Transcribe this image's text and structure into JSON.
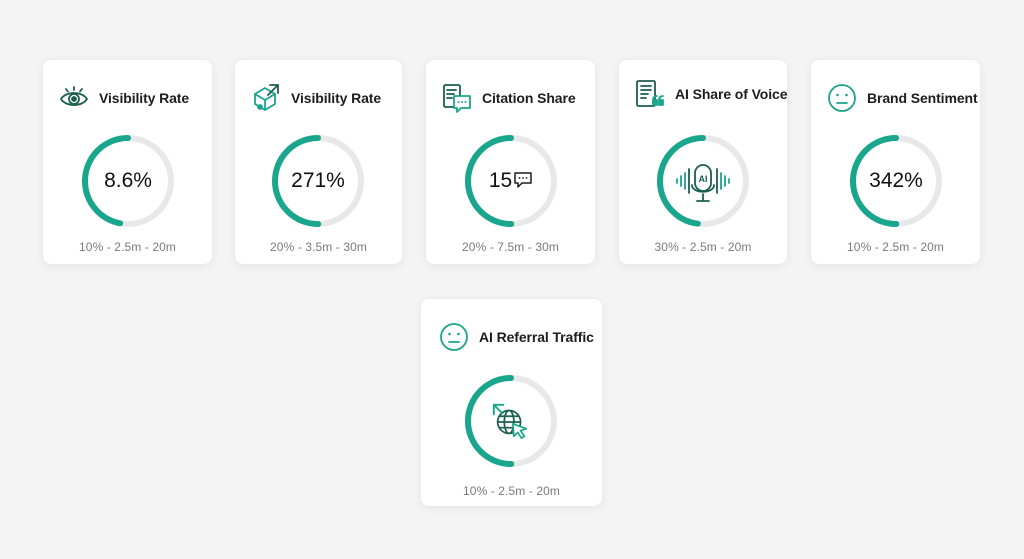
{
  "colors": {
    "accent": "#1aa68c",
    "track": "#e8e8e8",
    "background": "#f4f4f5",
    "card": "#ffffff"
  },
  "cards": [
    {
      "title": "Visibility Rate",
      "icon": "eye-icon",
      "value": "8.6%",
      "progress": 0.47,
      "footer": "10% - 2.5m - 20m"
    },
    {
      "title": "Visibility Rate",
      "icon": "cube-arrow-icon",
      "value": "271%",
      "progress": 0.5,
      "footer": "20% - 3.5m - 30m"
    },
    {
      "title": "Citation Share",
      "icon": "chat-document-icon",
      "value": "15",
      "progress": 0.5,
      "footer": "20% - 7.5m - 30m"
    },
    {
      "title": "AI Share of Voice",
      "icon": "quote-document-icon",
      "center_icon": "ai-microphone-icon",
      "center_icon_text": "AI",
      "progress": 0.48,
      "footer": "30% - 2.5m - 20m"
    },
    {
      "title": "Brand Sentiment",
      "icon": "neutral-face-icon",
      "value": "342%",
      "progress": 0.5,
      "footer": "10% - 2.5m - 20m"
    },
    {
      "title": "AI Referral Traffic",
      "icon": "neutral-face-icon",
      "center_icon": "globe-cursor-icon",
      "progress": 0.5,
      "footer": "10% - 2.5m - 20m"
    }
  ]
}
